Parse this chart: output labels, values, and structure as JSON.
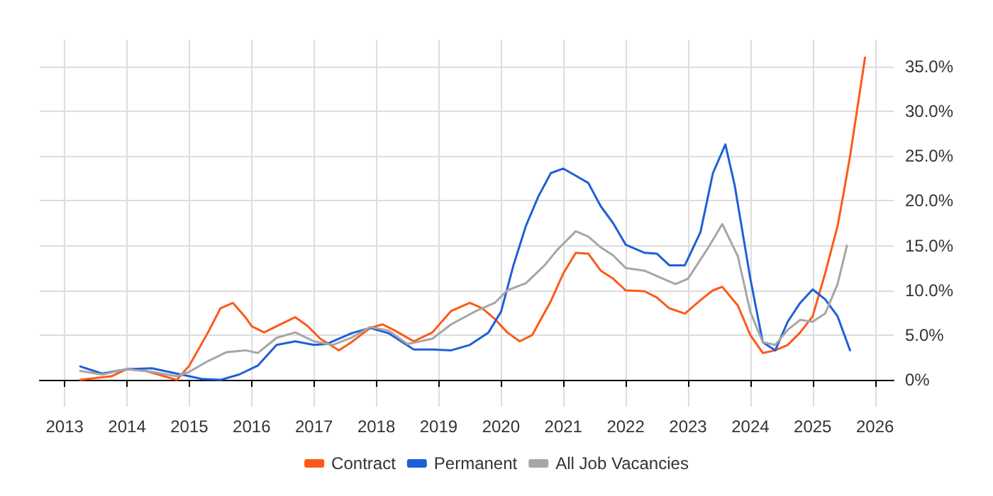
{
  "chart_data": {
    "type": "line",
    "xlim": [
      2012.6,
      2026.3
    ],
    "xticks": [
      2013,
      2014,
      2015,
      2016,
      2017,
      2018,
      2019,
      2020,
      2021,
      2022,
      2023,
      2024,
      2025,
      2026
    ],
    "ylim": [
      -3,
      38
    ],
    "yticks": [
      {
        "value": 0,
        "label": "0%"
      },
      {
        "value": 5,
        "label": "5.0%"
      },
      {
        "value": 10,
        "label": "10.0%"
      },
      {
        "value": 15,
        "label": "15.0%"
      },
      {
        "value": 20,
        "label": "20.0%"
      },
      {
        "value": 25,
        "label": "25.0%"
      },
      {
        "value": 30,
        "label": "30.0%"
      },
      {
        "value": 35,
        "label": "35.0%"
      }
    ],
    "grid": true,
    "legend": "bottom",
    "marker": "none",
    "line_style": "solid",
    "series": [
      {
        "name": "Contract",
        "color": "#fc5a17",
        "x": [
          2013.25,
          2013.75,
          2014.0,
          2014.3,
          2014.6,
          2014.8,
          2015.0,
          2015.3,
          2015.5,
          2015.7,
          2015.9,
          2016.0,
          2016.2,
          2016.4,
          2016.7,
          2016.9,
          2017.1,
          2017.4,
          2017.6,
          2017.9,
          2018.1,
          2018.3,
          2018.6,
          2018.9,
          2019.2,
          2019.5,
          2019.7,
          2019.9,
          2020.1,
          2020.3,
          2020.5,
          2020.8,
          2021.0,
          2021.2,
          2021.4,
          2021.6,
          2021.8,
          2022.0,
          2022.3,
          2022.5,
          2022.7,
          2022.95,
          2023.2,
          2023.4,
          2023.55,
          2023.8,
          2024.0,
          2024.2,
          2024.4,
          2024.6,
          2024.8,
          2025.0,
          2025.2,
          2025.4,
          2025.5,
          2025.6,
          2025.84
        ],
        "values": [
          0,
          0.4,
          1.2,
          1,
          0.4,
          0,
          1.6,
          5.3,
          8,
          8.6,
          7,
          6,
          5.3,
          6,
          7,
          6,
          4.6,
          3.3,
          4.2,
          5.8,
          6.2,
          5.5,
          4.3,
          5.3,
          7.7,
          8.6,
          8,
          6.8,
          5.3,
          4.3,
          5,
          8.8,
          11.9,
          14.2,
          14.1,
          12.2,
          11.3,
          10,
          9.9,
          9.2,
          8,
          7.4,
          8.9,
          10,
          10.4,
          8.3,
          5,
          3,
          3.3,
          3.9,
          5.3,
          7.1,
          11.9,
          17.2,
          21,
          25,
          36
        ]
      },
      {
        "name": "Permanent",
        "color": "#1f5fd6",
        "x": [
          2013.25,
          2013.6,
          2014.0,
          2014.4,
          2014.8,
          2015.2,
          2015.5,
          2015.8,
          2016.1,
          2016.4,
          2016.7,
          2017.0,
          2017.2,
          2017.6,
          2017.9,
          2018.2,
          2018.6,
          2018.9,
          2019.2,
          2019.5,
          2019.8,
          2020.0,
          2020.2,
          2020.4,
          2020.6,
          2020.8,
          2021.0,
          2021.2,
          2021.4,
          2021.6,
          2021.8,
          2022.0,
          2022.3,
          2022.5,
          2022.7,
          2022.95,
          2023.2,
          2023.4,
          2023.6,
          2023.75,
          2024.0,
          2024.2,
          2024.4,
          2024.6,
          2024.8,
          2025.0,
          2025.2,
          2025.4,
          2025.6
        ],
        "values": [
          1.5,
          0.7,
          1.2,
          1.3,
          0.7,
          0.1,
          0,
          0.6,
          1.6,
          3.9,
          4.3,
          3.9,
          4,
          5.2,
          5.8,
          5.2,
          3.4,
          3.4,
          3.3,
          3.9,
          5.3,
          7.6,
          12.8,
          17.2,
          20.5,
          23.1,
          23.6,
          22.8,
          22,
          19.4,
          17.5,
          15.1,
          14.2,
          14.1,
          12.8,
          12.8,
          16.5,
          23.1,
          26.3,
          21.7,
          11.3,
          4.2,
          3.3,
          6.5,
          8.6,
          10.1,
          9,
          7.1,
          3.3
        ]
      },
      {
        "name": "All Job Vacancies",
        "color": "#a6a6a6",
        "x": [
          2013.25,
          2013.6,
          2014.0,
          2014.4,
          2014.8,
          2015.0,
          2015.3,
          2015.6,
          2015.9,
          2016.1,
          2016.4,
          2016.7,
          2017.0,
          2017.3,
          2017.6,
          2017.9,
          2018.2,
          2018.5,
          2018.9,
          2019.2,
          2019.6,
          2019.9,
          2020.1,
          2020.4,
          2020.7,
          2020.9,
          2021.2,
          2021.4,
          2021.6,
          2021.8,
          2022.0,
          2022.3,
          2022.6,
          2022.8,
          2023.0,
          2023.3,
          2023.55,
          2023.8,
          2024.0,
          2024.2,
          2024.4,
          2024.6,
          2024.8,
          2025.0,
          2025.2,
          2025.4,
          2025.55
        ],
        "values": [
          1,
          0.6,
          1.2,
          0.9,
          0.4,
          0.9,
          2.1,
          3.1,
          3.3,
          3,
          4.7,
          5.3,
          4.3,
          3.9,
          4.7,
          5.9,
          5.5,
          4,
          4.6,
          6.2,
          7.7,
          8.6,
          10,
          10.8,
          12.8,
          14.5,
          16.6,
          16,
          14.8,
          13.9,
          12.5,
          12.2,
          11.3,
          10.7,
          11.3,
          14.5,
          17.4,
          13.8,
          7.6,
          4.2,
          3.9,
          5.6,
          6.7,
          6.5,
          7.4,
          10.7,
          15
        ]
      }
    ]
  }
}
